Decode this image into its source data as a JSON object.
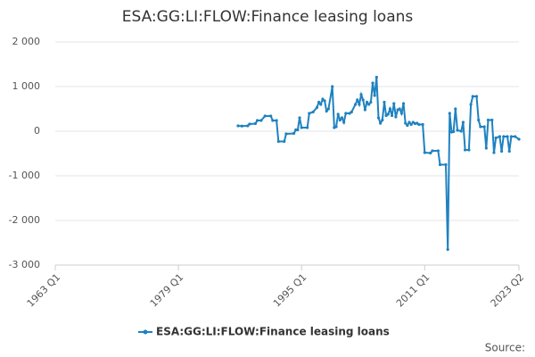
{
  "chart_data": {
    "type": "line",
    "title": "ESA:GG:LI:FLOW:Finance leasing loans",
    "x": [
      "1986 Q4",
      "1987 Q2",
      "1988 Q1",
      "1988 Q2",
      "1989 Q1",
      "1989 Q2",
      "1989 Q4",
      "1990 Q2",
      "1991 Q1",
      "1991 Q2",
      "1991 Q4",
      "1992 Q1",
      "1992 Q4",
      "1993 Q1",
      "1994 Q1",
      "1994 Q2",
      "1994 Q3",
      "1994 Q4",
      "1995 Q1",
      "1995 Q4",
      "1996 Q1",
      "1996 Q3",
      "1997 Q1",
      "1997 Q2",
      "1997 Q3",
      "1997 Q4",
      "1998 Q1",
      "1998 Q2",
      "1998 Q3",
      "1999 Q1",
      "1999 Q2",
      "1999 Q3",
      "1999 Q4",
      "2000 Q1",
      "2000 Q2",
      "2000 Q3",
      "2000 Q4",
      "2001 Q2",
      "2001 Q3",
      "2002 Q1",
      "2002 Q2",
      "2002 Q3",
      "2002 Q4",
      "2003 Q1",
      "2003 Q2",
      "2003 Q3",
      "2003 Q4",
      "2004 Q1",
      "2004 Q2",
      "2004 Q3",
      "2004 Q4",
      "2005 Q1",
      "2005 Q2",
      "2005 Q3",
      "2005 Q4",
      "2006 Q1",
      "2006 Q2",
      "2006 Q3",
      "2006 Q4",
      "2007 Q1",
      "2007 Q2",
      "2007 Q3",
      "2007 Q4",
      "2008 Q1",
      "2008 Q2",
      "2008 Q3",
      "2008 Q4",
      "2009 Q1",
      "2009 Q2",
      "2009 Q3",
      "2009 Q4",
      "2010 Q1",
      "2010 Q2",
      "2010 Q4",
      "2011 Q1",
      "2011 Q4",
      "2012 Q1",
      "2012 Q4",
      "2013 Q1",
      "2013 Q4",
      "2014 Q1",
      "2014 Q2",
      "2014 Q3",
      "2014 Q4",
      "2015 Q1",
      "2015 Q2",
      "2015 Q4",
      "2016 Q1",
      "2016 Q2",
      "2016 Q4",
      "2017 Q1",
      "2017 Q2",
      "2017 Q4",
      "2018 Q1",
      "2018 Q2",
      "2018 Q4",
      "2019 Q1",
      "2019 Q2",
      "2019 Q4",
      "2020 Q1",
      "2020 Q2",
      "2020 Q4",
      "2021 Q1",
      "2021 Q2",
      "2021 Q4",
      "2022 Q1",
      "2022 Q2",
      "2022 Q4",
      "2023 Q2"
    ],
    "series": [
      {
        "name": "ESA:GG:LI:FLOW:Finance leasing loans",
        "color": "#1f82c0",
        "values": [
          120,
          115,
          120,
          160,
          170,
          240,
          240,
          340,
          340,
          240,
          240,
          -230,
          -230,
          -60,
          -50,
          30,
          30,
          300,
          80,
          80,
          400,
          430,
          530,
          650,
          600,
          720,
          680,
          450,
          500,
          1000,
          80,
          100,
          380,
          250,
          300,
          200,
          400,
          400,
          430,
          600,
          700,
          600,
          820,
          700,
          480,
          650,
          600,
          650,
          1080,
          800,
          1210,
          300,
          180,
          250,
          650,
          350,
          380,
          500,
          350,
          620,
          320,
          480,
          500,
          400,
          620,
          180,
          130,
          200,
          150,
          200,
          170,
          180,
          150,
          150,
          -480,
          -490,
          -440,
          -440,
          -750,
          -750,
          -2650,
          400,
          -20,
          -10,
          500,
          20,
          0,
          200,
          -420,
          -420,
          600,
          780,
          780,
          250,
          100,
          100,
          -380,
          250,
          250,
          -480,
          -150,
          -120,
          -450,
          -120,
          -120,
          -450,
          -120,
          -120,
          -180
        ]
      }
    ],
    "xlim": [
      "1963 Q1",
      "2023 Q2"
    ],
    "xticks": [
      "1963 Q1",
      "1979 Q1",
      "1995 Q1",
      "2011 Q1",
      "2023 Q2"
    ],
    "ylim": [
      -3000,
      2000
    ],
    "yticks": [
      {
        "value": -3000,
        "label": "-3 000"
      },
      {
        "value": -2000,
        "label": "-2 000"
      },
      {
        "value": -1000,
        "label": "-1 000"
      },
      0,
      {
        "value": 1000,
        "label": "1 000"
      },
      {
        "value": 2000,
        "label": "2 000"
      }
    ],
    "grid": true,
    "source": "Source:"
  }
}
